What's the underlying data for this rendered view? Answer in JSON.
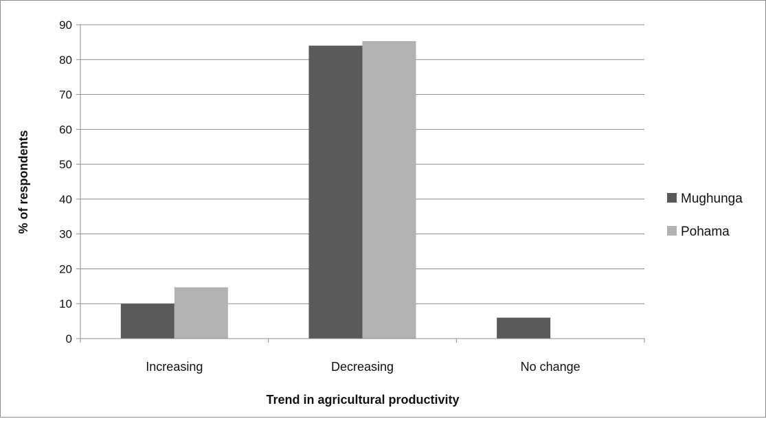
{
  "chart_data": {
    "type": "bar",
    "title": "",
    "xlabel": "Trend in agricultural productivity",
    "ylabel": "% of respondents",
    "categories": [
      "Increasing",
      "Decreasing",
      "No change"
    ],
    "series": [
      {
        "name": "Mughunga",
        "color": "#5a5a5a",
        "values": [
          10,
          84,
          6
        ]
      },
      {
        "name": "Pohama",
        "color": "#b2b2b2",
        "values": [
          14.7,
          85.3,
          0
        ]
      }
    ],
    "ylim": [
      0,
      90
    ],
    "yticks": [
      0,
      10,
      20,
      30,
      40,
      50,
      60,
      70,
      80,
      90
    ],
    "grid": "horizontal",
    "legend_position": "right"
  }
}
